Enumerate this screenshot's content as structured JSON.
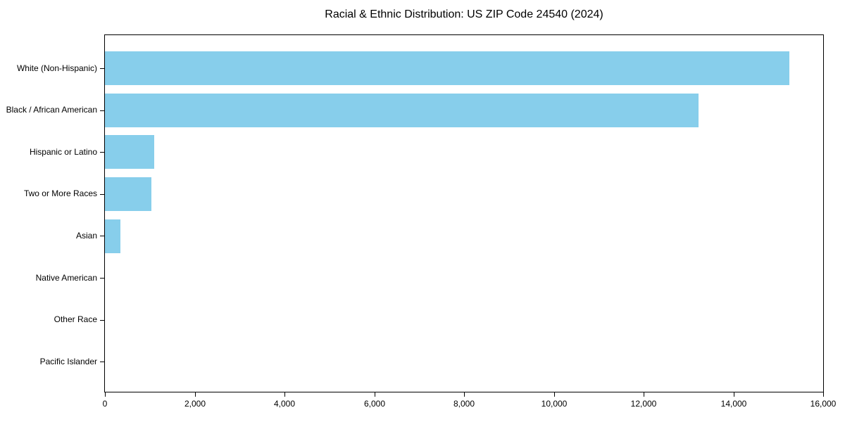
{
  "chart_data": {
    "type": "bar",
    "orientation": "horizontal",
    "title": "Racial & Ethnic Distribution: US ZIP Code 24540 (2024)",
    "categories": [
      "White (Non-Hispanic)",
      "Black / African American",
      "Hispanic or Latino",
      "Two or More Races",
      "Asian",
      "Native American",
      "Other Race",
      "Pacific Islander"
    ],
    "values": [
      15240,
      13220,
      1100,
      1030,
      350,
      0,
      0,
      0
    ],
    "xlabel": "",
    "ylabel": "",
    "xlim": [
      0,
      16000
    ],
    "x_ticks": [
      0,
      2000,
      4000,
      6000,
      8000,
      10000,
      12000,
      14000,
      16000
    ],
    "x_tick_labels": [
      "0",
      "2,000",
      "4,000",
      "6,000",
      "8,000",
      "10,000",
      "12,000",
      "14,000",
      "16,000"
    ],
    "bar_color": "#87CEEB",
    "grid": false,
    "legend": "none",
    "background_color": "#ffffff"
  }
}
